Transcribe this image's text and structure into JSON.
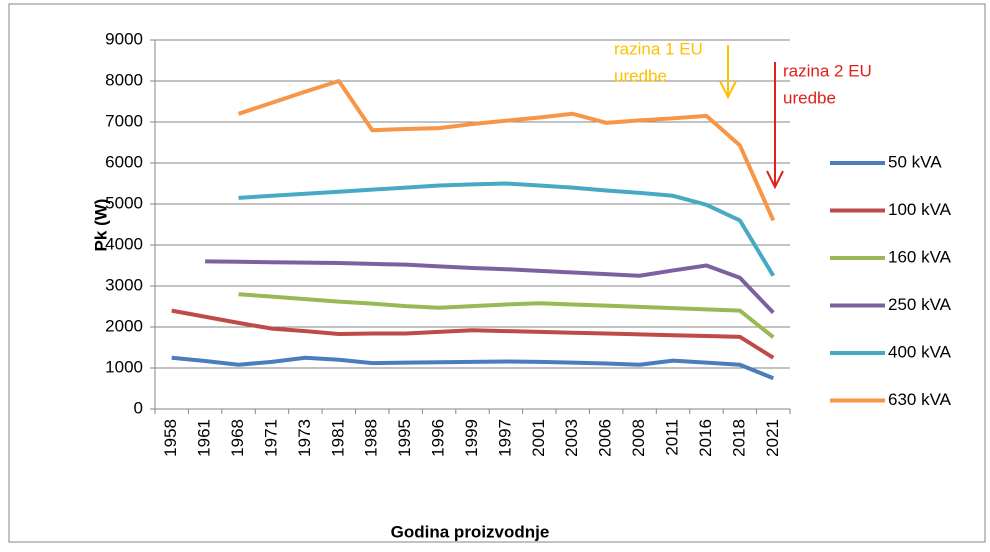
{
  "chart_data": {
    "type": "line",
    "x_label": "Godina proizvodnje",
    "y_label": "Pk (W)",
    "categories": [
      "1958",
      "1961",
      "1968",
      "1971",
      "1973",
      "1981",
      "1988",
      "1995",
      "1996",
      "1999",
      "1997",
      "2001",
      "2003",
      "2006",
      "2008",
      "2011",
      "2016",
      "2018",
      "2021"
    ],
    "series": [
      {
        "name": "50 kVA",
        "color": "#4a7ebb",
        "values": [
          1250,
          1170,
          1080,
          1150,
          1250,
          1200,
          1120,
          1130,
          1140,
          1150,
          1160,
          1150,
          1130,
          1110,
          1080,
          1180,
          1130,
          1080,
          750
        ]
      },
      {
        "name": "100 kVA",
        "color": "#be4b48",
        "values": [
          2400,
          2250,
          2100,
          1960,
          1900,
          1830,
          1840,
          1840,
          1880,
          1920,
          1900,
          1880,
          1860,
          1840,
          1820,
          1800,
          1780,
          1760,
          1250
        ]
      },
      {
        "name": "160 kVA",
        "color": "#98b954",
        "values": [
          null,
          null,
          2800,
          2740,
          2680,
          2620,
          2570,
          2510,
          2470,
          2510,
          2550,
          2580,
          2550,
          2520,
          2490,
          2460,
          2430,
          2400,
          1750
        ]
      },
      {
        "name": "250 kVA",
        "color": "#7d60a0",
        "values": [
          null,
          3600,
          3590,
          3580,
          3570,
          3560,
          3540,
          3520,
          3480,
          3440,
          3410,
          3370,
          3330,
          3290,
          3250,
          3380,
          3500,
          3200,
          2350
        ]
      },
      {
        "name": "400 kVA",
        "color": "#46aac5",
        "values": [
          null,
          null,
          5150,
          5200,
          5250,
          5300,
          5350,
          5400,
          5450,
          5480,
          5500,
          5450,
          5400,
          5330,
          5270,
          5200,
          4980,
          4600,
          3250
        ]
      },
      {
        "name": "630 kVA",
        "color": "#f79646",
        "values": [
          null,
          null,
          7200,
          7470,
          7740,
          8000,
          6800,
          6830,
          6850,
          6950,
          7030,
          7110,
          7200,
          6980,
          7040,
          7090,
          7150,
          6430,
          4600
        ]
      }
    ],
    "ylim": [
      0,
      9000
    ],
    "yticks": [
      0,
      1000,
      2000,
      3000,
      4000,
      5000,
      6000,
      7000,
      8000,
      9000
    ],
    "grid": true,
    "legend": "right",
    "annotations": [
      {
        "lines": [
          "razina 1 EU",
          "uredbe"
        ],
        "color": "#ffc000"
      },
      {
        "lines": [
          "razina 2 EU",
          "uredbe"
        ],
        "color": "#e0201b"
      }
    ]
  }
}
